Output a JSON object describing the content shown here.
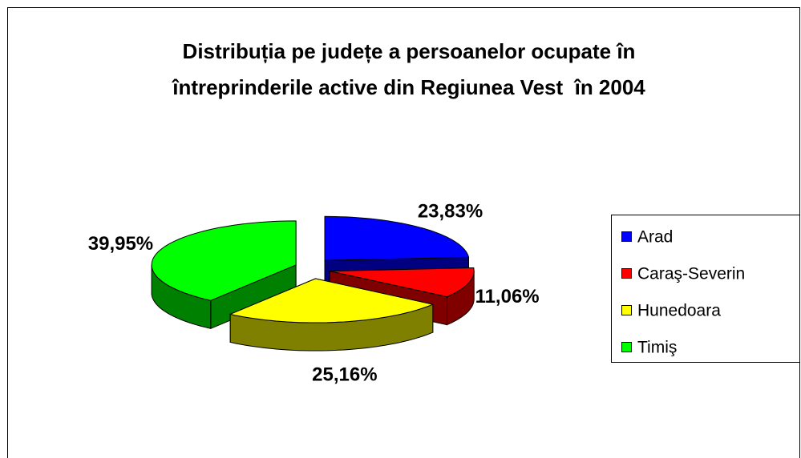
{
  "chart_data": {
    "type": "pie3d",
    "title": [
      "Distribuția pe județe a persoanelor ocupate în",
      "întreprinderile active din Regiunea Vest  în 2004"
    ],
    "categories": [
      "Arad",
      "Caraş-Severin",
      "Hunedoara",
      "Timiş"
    ],
    "values": [
      23.83,
      11.06,
      25.16,
      39.95
    ],
    "value_labels": [
      "23,83%",
      "11,06%",
      "25,16%",
      "39,95%"
    ],
    "colors": [
      "#0000ff",
      "#ff0000",
      "#ffff00",
      "#00ff00"
    ],
    "side_colors": [
      "#000080",
      "#800000",
      "#808000",
      "#008000"
    ],
    "legend": "right"
  }
}
